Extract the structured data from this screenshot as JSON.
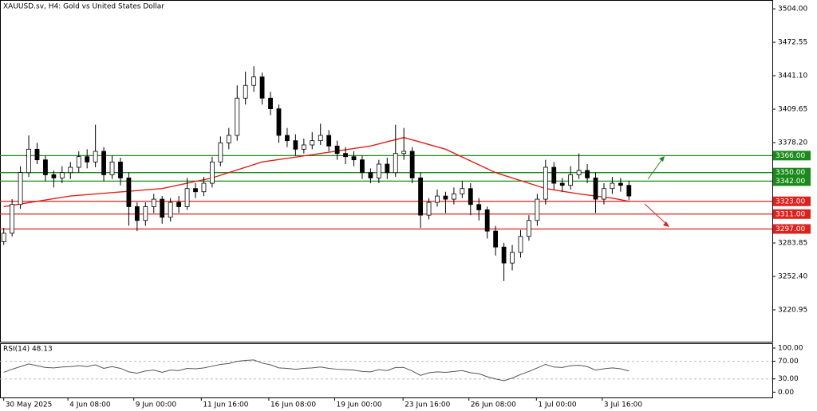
{
  "chart_data": {
    "type": "candlestick",
    "title": "XAUUSD.sv, H4:  Gold vs United States Dollar",
    "xlim": [
      -0.45,
      92.2
    ],
    "xticks": [
      {
        "value": 0,
        "label": "30 May 2025"
      },
      {
        "value": 7.7,
        "label": "4 Jun 08:00"
      },
      {
        "value": 15.6,
        "label": "9 Jun 00:00"
      },
      {
        "value": 23.7,
        "label": "11 Jun 16:00"
      },
      {
        "value": 31.8,
        "label": "16 Jun 08:00"
      },
      {
        "value": 39.7,
        "label": "19 Jun 00:00"
      },
      {
        "value": 47.9,
        "label": "23 Jun 16:00"
      },
      {
        "value": 55.8,
        "label": "26 Jun 08:00"
      },
      {
        "value": 63.9,
        "label": "1 Jul 00:00"
      },
      {
        "value": 71.8,
        "label": "3 Jul 16:00"
      }
    ],
    "ylim": [
      3191,
      3512.3
    ],
    "yticks": [
      {
        "value": 3504,
        "label": "3504.00"
      },
      {
        "value": 3472.55,
        "label": "3472.55"
      },
      {
        "value": 3441.1,
        "label": "3441.10"
      },
      {
        "value": 3409.65,
        "label": "3409.65"
      },
      {
        "value": 3378.2,
        "label": "3378.20"
      },
      {
        "value": 3283.85,
        "label": "3283.85"
      },
      {
        "value": 3252.4,
        "label": "3252.40"
      },
      {
        "value": 3220.95,
        "label": "3220.95"
      }
    ],
    "candles": [
      [
        3285,
        3298,
        3282,
        3293
      ],
      [
        3293,
        3325,
        3290,
        3320
      ],
      [
        3320,
        3356,
        3316,
        3350
      ],
      [
        3350,
        3385,
        3346,
        3372
      ],
      [
        3372,
        3378,
        3358,
        3362
      ],
      [
        3362,
        3366,
        3342,
        3348
      ],
      [
        3348,
        3352,
        3336,
        3345
      ],
      [
        3345,
        3356,
        3340,
        3350
      ],
      [
        3350,
        3360,
        3344,
        3355
      ],
      [
        3355,
        3370,
        3350,
        3365
      ],
      [
        3365,
        3372,
        3354,
        3360
      ],
      [
        3360,
        3395,
        3355,
        3370
      ],
      [
        3370,
        3374,
        3342,
        3348
      ],
      [
        3348,
        3366,
        3344,
        3360
      ],
      [
        3360,
        3364,
        3338,
        3345
      ],
      [
        3345,
        3350,
        3300,
        3318
      ],
      [
        3318,
        3322,
        3295,
        3305
      ],
      [
        3305,
        3322,
        3300,
        3318
      ],
      [
        3318,
        3330,
        3312,
        3325
      ],
      [
        3325,
        3328,
        3302,
        3308
      ],
      [
        3308,
        3326,
        3304,
        3322
      ],
      [
        3322,
        3328,
        3312,
        3318
      ],
      [
        3318,
        3345,
        3315,
        3335
      ],
      [
        3335,
        3340,
        3326,
        3332
      ],
      [
        3332,
        3346,
        3328,
        3340
      ],
      [
        3340,
        3365,
        3336,
        3360
      ],
      [
        3360,
        3384,
        3356,
        3378
      ],
      [
        3378,
        3392,
        3372,
        3385
      ],
      [
        3385,
        3432,
        3380,
        3420
      ],
      [
        3420,
        3445,
        3414,
        3432
      ],
      [
        3432,
        3450,
        3426,
        3440
      ],
      [
        3440,
        3444,
        3414,
        3420
      ],
      [
        3420,
        3426,
        3404,
        3410
      ],
      [
        3410,
        3414,
        3378,
        3385
      ],
      [
        3385,
        3392,
        3374,
        3380
      ],
      [
        3380,
        3386,
        3366,
        3372
      ],
      [
        3372,
        3382,
        3368,
        3376
      ],
      [
        3376,
        3388,
        3372,
        3380
      ],
      [
        3380,
        3396,
        3376,
        3385
      ],
      [
        3385,
        3390,
        3370,
        3375
      ],
      [
        3375,
        3380,
        3362,
        3368
      ],
      [
        3368,
        3374,
        3358,
        3365
      ],
      [
        3365,
        3370,
        3356,
        3362
      ],
      [
        3362,
        3366,
        3344,
        3350
      ],
      [
        3350,
        3354,
        3340,
        3345
      ],
      [
        3345,
        3362,
        3340,
        3358
      ],
      [
        3358,
        3364,
        3344,
        3350
      ],
      [
        3350,
        3395,
        3346,
        3368
      ],
      [
        3368,
        3392,
        3362,
        3370
      ],
      [
        3370,
        3374,
        3340,
        3345
      ],
      [
        3345,
        3350,
        3298,
        3310
      ],
      [
        3310,
        3326,
        3306,
        3322
      ],
      [
        3322,
        3334,
        3318,
        3328
      ],
      [
        3328,
        3332,
        3312,
        3325
      ],
      [
        3325,
        3336,
        3320,
        3330
      ],
      [
        3330,
        3342,
        3326,
        3335
      ],
      [
        3335,
        3340,
        3310,
        3320
      ],
      [
        3320,
        3326,
        3305,
        3315
      ],
      [
        3315,
        3318,
        3288,
        3295
      ],
      [
        3295,
        3300,
        3272,
        3280
      ],
      [
        3280,
        3284,
        3248,
        3265
      ],
      [
        3265,
        3282,
        3258,
        3275
      ],
      [
        3275,
        3296,
        3270,
        3290
      ],
      [
        3290,
        3310,
        3286,
        3305
      ],
      [
        3305,
        3330,
        3300,
        3325
      ],
      [
        3325,
        3362,
        3320,
        3355
      ],
      [
        3355,
        3360,
        3334,
        3340
      ],
      [
        3340,
        3345,
        3332,
        3338
      ],
      [
        3338,
        3356,
        3334,
        3348
      ],
      [
        3348,
        3368,
        3344,
        3352
      ],
      [
        3352,
        3358,
        3340,
        3345
      ],
      [
        3345,
        3350,
        3312,
        3325
      ],
      [
        3325,
        3340,
        3320,
        3335
      ],
      [
        3335,
        3346,
        3330,
        3340
      ],
      [
        3340,
        3345,
        3332,
        3338
      ],
      [
        3338,
        3342,
        3324,
        3328
      ]
    ],
    "up_color": "#ffffff",
    "down_color": "#000000",
    "ma_color": "#e0201b",
    "ma_x": [
      0,
      8,
      19,
      25,
      31,
      38,
      44,
      48,
      53,
      59,
      65,
      69,
      73,
      75
    ],
    "ma_values": [
      3318,
      3328,
      3335,
      3345,
      3360,
      3368,
      3375,
      3383,
      3372,
      3350,
      3335,
      3330,
      3326,
      3323
    ],
    "levels": [
      {
        "value": 3366,
        "label": "3366.00",
        "color": "#1a8a1a"
      },
      {
        "value": 3350,
        "label": "3350.00",
        "color": "#1a8a1a"
      },
      {
        "value": 3342,
        "label": "3342.00",
        "color": "#1a8a1a"
      },
      {
        "value": 3323,
        "label": "3323.00",
        "color": "#e0201b"
      },
      {
        "value": 3311,
        "label": "3311.00",
        "color": "#e0201b"
      },
      {
        "value": 3297,
        "label": "3297.00",
        "color": "#e0201b"
      }
    ],
    "rsi_label": "RSI(14) 48.13",
    "rsi_ylim": [
      -12,
      109
    ],
    "rsi_yticks": [
      {
        "value": 100,
        "label": "100.00"
      },
      {
        "value": 70,
        "label": "70.00"
      },
      {
        "value": 30,
        "label": "30.00"
      },
      {
        "value": 0,
        "label": "0.00"
      }
    ],
    "rsi_values": [
      45,
      52,
      58,
      64,
      60,
      56,
      55,
      57,
      58,
      60,
      58,
      62,
      54,
      58,
      54,
      46,
      43,
      48,
      50,
      45,
      50,
      49,
      54,
      53,
      55,
      59,
      63,
      65,
      70,
      72,
      73,
      66,
      62,
      55,
      54,
      52,
      54,
      55,
      57,
      54,
      52,
      51,
      50,
      47,
      46,
      51,
      49,
      56,
      56,
      48,
      38,
      44,
      46,
      45,
      47,
      49,
      44,
      42,
      35,
      30,
      26,
      32,
      40,
      47,
      55,
      63,
      57,
      56,
      60,
      61,
      58,
      50,
      53,
      55,
      53,
      48.13
    ]
  }
}
